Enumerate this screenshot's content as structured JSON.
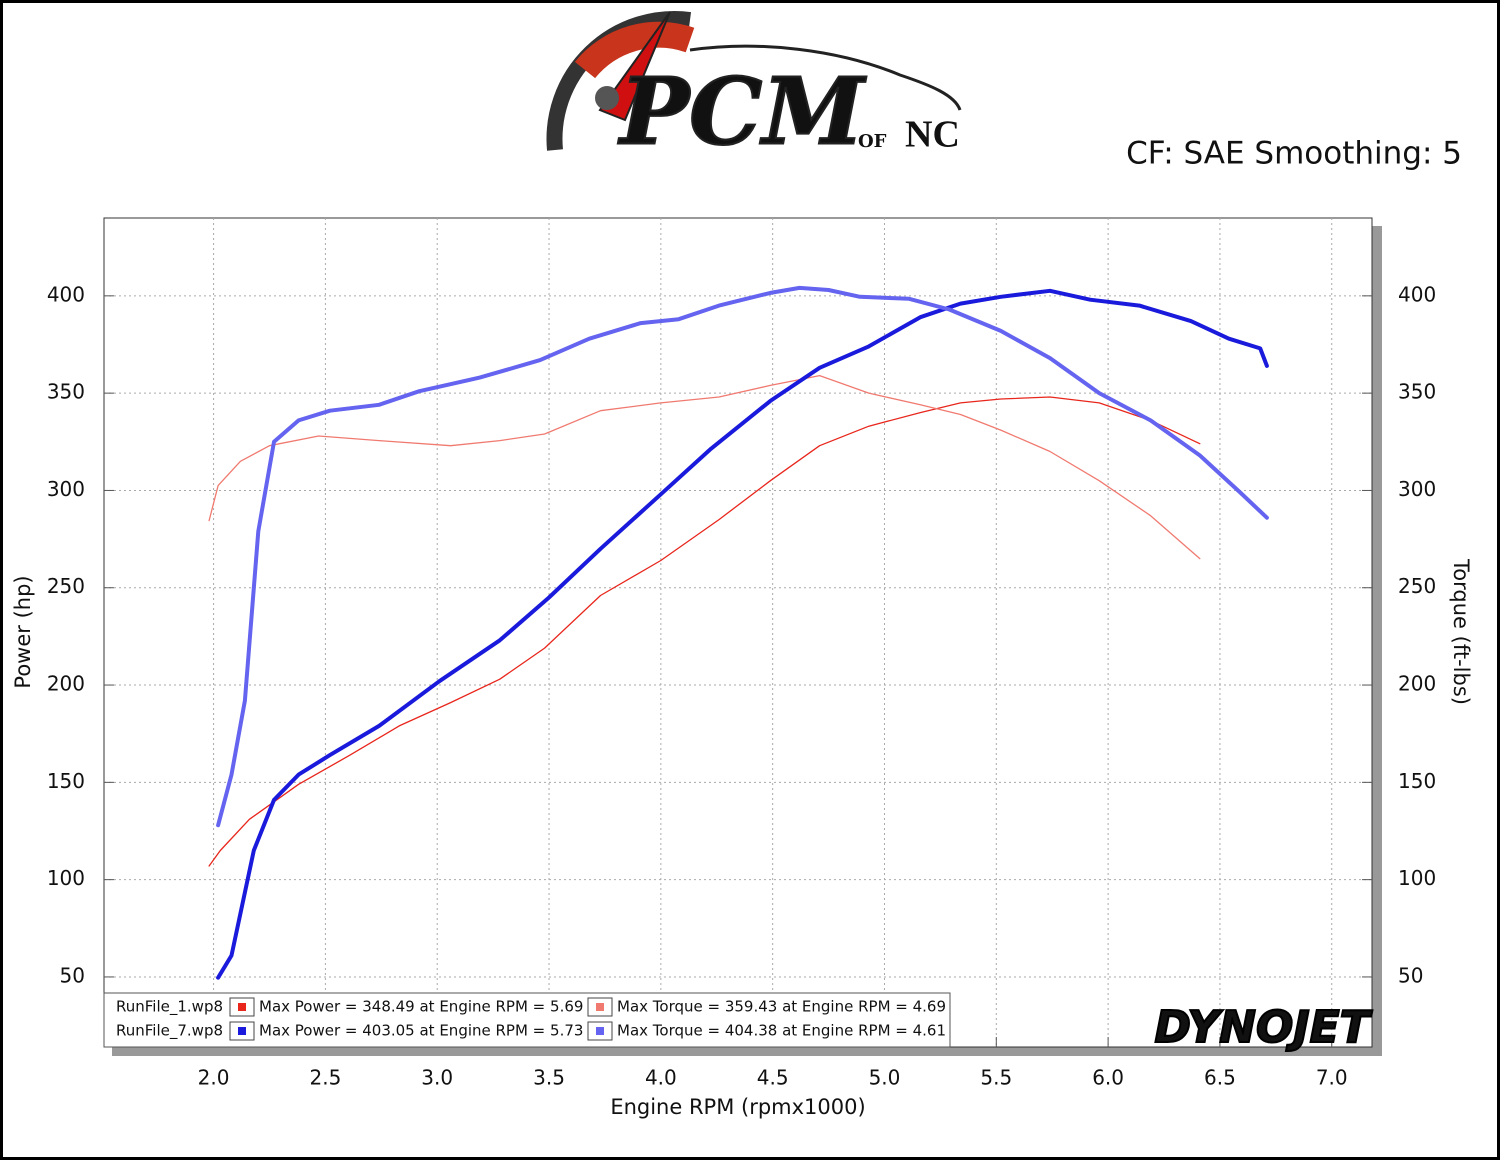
{
  "logo": {
    "brand": "PCM",
    "joiner": "OF",
    "region": "NC"
  },
  "chart_data": {
    "type": "line",
    "subtitle": "CF: SAE Smoothing: 5",
    "x_label": "Engine RPM (rpmx1000)",
    "y_label": "Power (hp)",
    "y2_label": "Torque (ft-lbs)",
    "brand_mark": "DYNOJET",
    "runs": [
      "RunFile_1.wp8",
      "RunFile_7.wp8"
    ],
    "xlim": [
      1.51,
      7.18
    ],
    "xticks": [
      {
        "value": 2,
        "label": "2.0"
      },
      2.5,
      {
        "value": 3,
        "label": "3.0"
      },
      3.5,
      {
        "value": 4,
        "label": "4.0"
      },
      4.5,
      {
        "value": 5,
        "label": "5.0"
      },
      5.5,
      {
        "value": 6,
        "label": "6.0"
      },
      6.5,
      {
        "value": 7,
        "label": "7.0"
      }
    ],
    "ylim": [
      14,
      440
    ],
    "yticks": [
      50,
      100,
      150,
      200,
      250,
      300,
      350,
      400
    ],
    "y2lim": [
      14,
      440
    ],
    "y2ticks": [
      50,
      100,
      150,
      200,
      250,
      300,
      350,
      400
    ],
    "grid": true,
    "series": [
      {
        "name": "Max Power = 348.49 at Engine RPM = 5.69",
        "color": "#e8261c",
        "width": 1.3,
        "x": [
          1.98,
          2.03,
          2.16,
          2.38,
          2.61,
          2.83,
          3.06,
          3.28,
          3.48,
          3.73,
          4.0,
          4.26,
          4.49,
          4.71,
          4.93,
          5.16,
          5.34,
          5.52,
          5.74,
          5.96,
          6.19,
          6.41
        ],
        "values": [
          107,
          115,
          131,
          149,
          164,
          179,
          191,
          203,
          219,
          246,
          264,
          285,
          305,
          323,
          333,
          340,
          345,
          347,
          348,
          345,
          336,
          324
        ]
      },
      {
        "name": "Max Torque = 359.43 at Engine RPM = 4.69",
        "color": "#f07a70",
        "width": 1.3,
        "axis": "y2",
        "x": [
          1.98,
          2.02,
          2.12,
          2.25,
          2.47,
          2.74,
          3.06,
          3.28,
          3.48,
          3.73,
          4.0,
          4.26,
          4.49,
          4.71,
          4.93,
          5.16,
          5.34,
          5.52,
          5.74,
          5.96,
          6.19,
          6.41
        ],
        "values": [
          284.5,
          302.5,
          315,
          323,
          328,
          325.6,
          323,
          325.6,
          329,
          341,
          345,
          348,
          354,
          359,
          350,
          344,
          339,
          331,
          320,
          305,
          287,
          265
        ]
      },
      {
        "name": "Max Power = 403.05 at Engine RPM = 5.73",
        "color": "#1a1adc",
        "width": 4,
        "x": [
          2.02,
          2.08,
          2.18,
          2.27,
          2.38,
          2.52,
          2.74,
          3.01,
          3.28,
          3.5,
          3.73,
          4.0,
          4.22,
          4.49,
          4.71,
          4.93,
          5.16,
          5.34,
          5.52,
          5.74,
          5.92,
          6.14,
          6.37,
          6.54,
          6.68,
          6.71
        ],
        "values": [
          49.6,
          61,
          115,
          141,
          154,
          164,
          179,
          202,
          223,
          245,
          270,
          298,
          321,
          346,
          363,
          374,
          389,
          396,
          399.5,
          402.6,
          398,
          395,
          387,
          378,
          373,
          364
        ]
      },
      {
        "name": "Max Torque = 404.38 at Engine RPM = 4.61",
        "color": "#6464f0",
        "width": 4,
        "axis": "y2",
        "x": [
          2.02,
          2.08,
          2.14,
          2.2,
          2.27,
          2.38,
          2.52,
          2.74,
          2.92,
          3.19,
          3.46,
          3.68,
          3.91,
          4.08,
          4.26,
          4.49,
          4.62,
          4.75,
          4.89,
          5.11,
          5.29,
          5.52,
          5.74,
          5.96,
          6.19,
          6.41,
          6.59,
          6.71
        ],
        "values": [
          128,
          154,
          192,
          279,
          325,
          336,
          341,
          344,
          351,
          358,
          367,
          378,
          386,
          388,
          395,
          401.5,
          404.1,
          403,
          399.5,
          398.5,
          393,
          382,
          368,
          350,
          336,
          318,
          299,
          286
        ]
      }
    ]
  }
}
